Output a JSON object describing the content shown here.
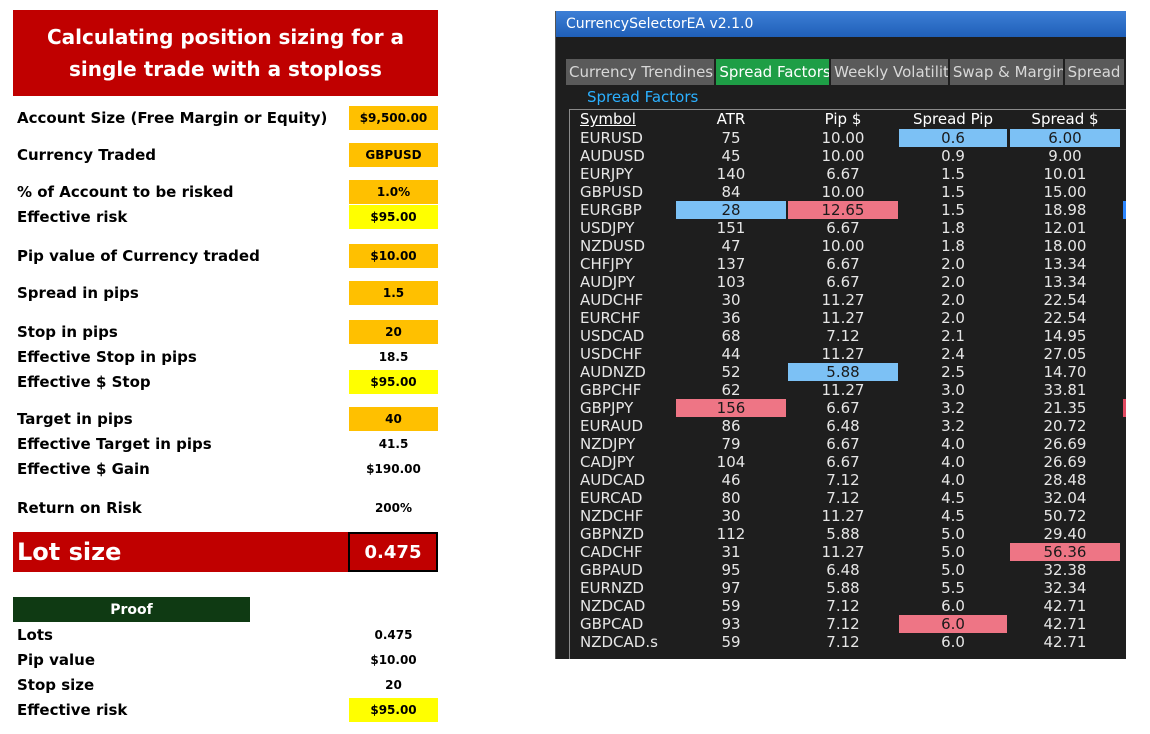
{
  "sheet": {
    "title": "Calculating position sizing for a single trade with a stoploss",
    "rows": [
      {
        "label": "Account Size (Free Margin or Equity)",
        "value": "$9,500.00",
        "fill": "orange"
      },
      {
        "label": "Currency Traded",
        "value": "GBPUSD",
        "fill": "orange"
      },
      {
        "label": "% of Account to be risked",
        "value": "1.0%",
        "fill": "orange"
      },
      {
        "label": "Effective risk",
        "value": "$95.00",
        "fill": "yellow"
      },
      {
        "label": "Pip value of Currency traded",
        "value": "$10.00",
        "fill": "orange"
      },
      {
        "label": "Spread in pips",
        "value": "1.5",
        "fill": "orange"
      },
      {
        "label": "Stop in pips",
        "value": "20",
        "fill": "orange"
      },
      {
        "label": "Effective Stop in pips",
        "value": "18.5",
        "fill": "none"
      },
      {
        "label": "Effective $ Stop",
        "value": "$95.00",
        "fill": "yellow"
      },
      {
        "label": "Target in pips",
        "value": "40",
        "fill": "orange"
      },
      {
        "label": "Effective Target in pips",
        "value": "41.5",
        "fill": "none"
      },
      {
        "label": "Effective $ Gain",
        "value": "$190.00",
        "fill": "none"
      },
      {
        "label": "Return on Risk",
        "value": "200%",
        "fill": "none"
      }
    ],
    "lot_size": {
      "label": "Lot size",
      "value": "0.475"
    },
    "proof": {
      "header": "Proof",
      "rows": [
        {
          "label": "Lots",
          "value": "0.475",
          "fill": "none"
        },
        {
          "label": "Pip value",
          "value": "$10.00",
          "fill": "none"
        },
        {
          "label": "Stop size",
          "value": "20",
          "fill": "none"
        },
        {
          "label": "Effective risk",
          "value": "$95.00",
          "fill": "yellow"
        }
      ]
    }
  },
  "app": {
    "window_title": "CurrencySelectorEA v2.1.0",
    "tabs": [
      {
        "label": "Currency Trendiness",
        "active": false
      },
      {
        "label": "Spread Factors",
        "active": true
      },
      {
        "label": "Weekly Volatility",
        "active": false
      },
      {
        "label": "Swap & Margin",
        "active": false
      },
      {
        "label": "Spread",
        "active": false
      }
    ],
    "group_title": "Spread Factors",
    "columns": [
      "Symbol",
      "ATR",
      "Pip $",
      "Spread Pip",
      "Spread $"
    ],
    "rows": [
      {
        "symbol": "EURUSD",
        "atr": "75",
        "pip": "10.00",
        "spread_pip": "0.6",
        "spread_usd": "6.00",
        "hl": {
          "spread_pip": "blue",
          "spread_usd": "blue"
        }
      },
      {
        "symbol": "AUDUSD",
        "atr": "45",
        "pip": "10.00",
        "spread_pip": "0.9",
        "spread_usd": "9.00",
        "hl": {}
      },
      {
        "symbol": "EURJPY",
        "atr": "140",
        "pip": "6.67",
        "spread_pip": "1.5",
        "spread_usd": "10.01",
        "hl": {}
      },
      {
        "symbol": "GBPUSD",
        "atr": "84",
        "pip": "10.00",
        "spread_pip": "1.5",
        "spread_usd": "15.00",
        "hl": {}
      },
      {
        "symbol": "EURGBP",
        "atr": "28",
        "pip": "12.65",
        "spread_pip": "1.5",
        "spread_usd": "18.98",
        "hl": {
          "atr": "blue",
          "pip": "red",
          "edge": "blue"
        }
      },
      {
        "symbol": "USDJPY",
        "atr": "151",
        "pip": "6.67",
        "spread_pip": "1.8",
        "spread_usd": "12.01",
        "hl": {}
      },
      {
        "symbol": "NZDUSD",
        "atr": "47",
        "pip": "10.00",
        "spread_pip": "1.8",
        "spread_usd": "18.00",
        "hl": {}
      },
      {
        "symbol": "CHFJPY",
        "atr": "137",
        "pip": "6.67",
        "spread_pip": "2.0",
        "spread_usd": "13.34",
        "hl": {}
      },
      {
        "symbol": "AUDJPY",
        "atr": "103",
        "pip": "6.67",
        "spread_pip": "2.0",
        "spread_usd": "13.34",
        "hl": {}
      },
      {
        "symbol": "AUDCHF",
        "atr": "30",
        "pip": "11.27",
        "spread_pip": "2.0",
        "spread_usd": "22.54",
        "hl": {}
      },
      {
        "symbol": "EURCHF",
        "atr": "36",
        "pip": "11.27",
        "spread_pip": "2.0",
        "spread_usd": "22.54",
        "hl": {}
      },
      {
        "symbol": "USDCAD",
        "atr": "68",
        "pip": "7.12",
        "spread_pip": "2.1",
        "spread_usd": "14.95",
        "hl": {}
      },
      {
        "symbol": "USDCHF",
        "atr": "44",
        "pip": "11.27",
        "spread_pip": "2.4",
        "spread_usd": "27.05",
        "hl": {}
      },
      {
        "symbol": "AUDNZD",
        "atr": "52",
        "pip": "5.88",
        "spread_pip": "2.5",
        "spread_usd": "14.70",
        "hl": {
          "pip": "blue"
        }
      },
      {
        "symbol": "GBPCHF",
        "atr": "62",
        "pip": "11.27",
        "spread_pip": "3.0",
        "spread_usd": "33.81",
        "hl": {}
      },
      {
        "symbol": "GBPJPY",
        "atr": "156",
        "pip": "6.67",
        "spread_pip": "3.2",
        "spread_usd": "21.35",
        "hl": {
          "atr": "red",
          "edge": "red"
        }
      },
      {
        "symbol": "EURAUD",
        "atr": "86",
        "pip": "6.48",
        "spread_pip": "3.2",
        "spread_usd": "20.72",
        "hl": {}
      },
      {
        "symbol": "NZDJPY",
        "atr": "79",
        "pip": "6.67",
        "spread_pip": "4.0",
        "spread_usd": "26.69",
        "hl": {}
      },
      {
        "symbol": "CADJPY",
        "atr": "104",
        "pip": "6.67",
        "spread_pip": "4.0",
        "spread_usd": "26.69",
        "hl": {}
      },
      {
        "symbol": "AUDCAD",
        "atr": "46",
        "pip": "7.12",
        "spread_pip": "4.0",
        "spread_usd": "28.48",
        "hl": {}
      },
      {
        "symbol": "EURCAD",
        "atr": "80",
        "pip": "7.12",
        "spread_pip": "4.5",
        "spread_usd": "32.04",
        "hl": {}
      },
      {
        "symbol": "NZDCHF",
        "atr": "30",
        "pip": "11.27",
        "spread_pip": "4.5",
        "spread_usd": "50.72",
        "hl": {}
      },
      {
        "symbol": "GBPNZD",
        "atr": "112",
        "pip": "5.88",
        "spread_pip": "5.0",
        "spread_usd": "29.40",
        "hl": {}
      },
      {
        "symbol": "CADCHF",
        "atr": "31",
        "pip": "11.27",
        "spread_pip": "5.0",
        "spread_usd": "56.36",
        "hl": {
          "spread_usd": "red"
        }
      },
      {
        "symbol": "GBPAUD",
        "atr": "95",
        "pip": "6.48",
        "spread_pip": "5.0",
        "spread_usd": "32.38",
        "hl": {}
      },
      {
        "symbol": "EURNZD",
        "atr": "97",
        "pip": "5.88",
        "spread_pip": "5.5",
        "spread_usd": "32.34",
        "hl": {}
      },
      {
        "symbol": "NZDCAD",
        "atr": "59",
        "pip": "7.12",
        "spread_pip": "6.0",
        "spread_usd": "42.71",
        "hl": {}
      },
      {
        "symbol": "GBPCAD",
        "atr": "93",
        "pip": "7.12",
        "spread_pip": "6.0",
        "spread_usd": "42.71",
        "hl": {
          "spread_pip": "red"
        }
      },
      {
        "symbol": "NZDCAD.s",
        "atr": "59",
        "pip": "7.12",
        "spread_pip": "6.0",
        "spread_usd": "42.71",
        "hl": {}
      }
    ]
  }
}
